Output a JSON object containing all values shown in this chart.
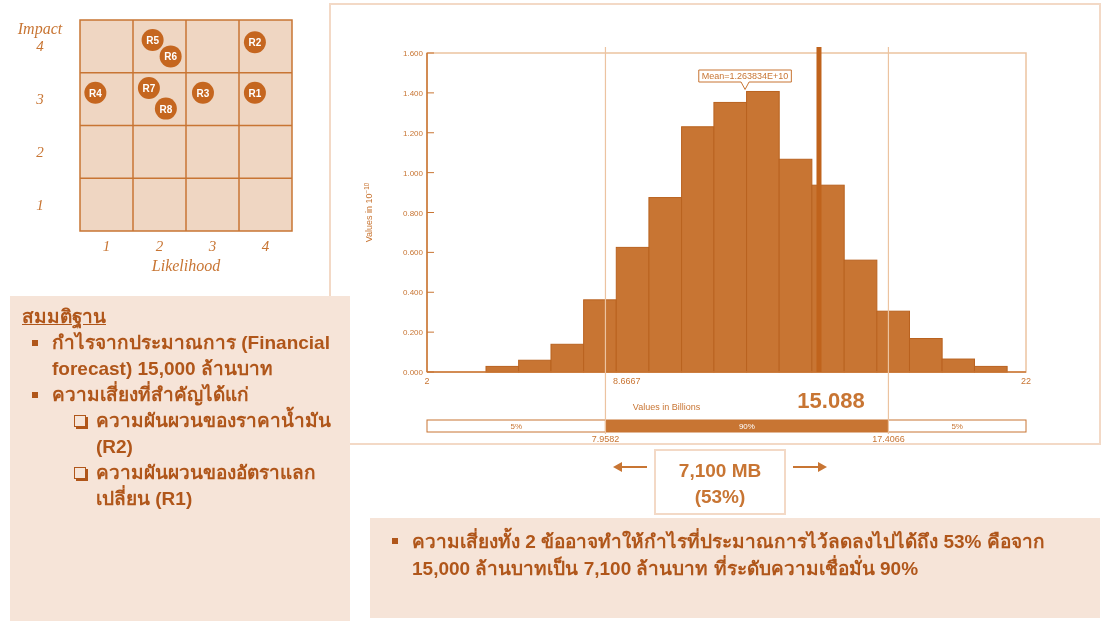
{
  "chart_data": [
    {
      "type": "scatter",
      "xlabel": "Likelihood",
      "ylabel": "Impact",
      "xlim": [
        0.5,
        4.5
      ],
      "ylim": [
        0.5,
        4.5
      ],
      "xticks": [
        1,
        2,
        3,
        4
      ],
      "yticks": [
        1,
        2,
        3,
        4
      ],
      "marker": "circle",
      "ref_lines": [
        {
          "axis": "x",
          "value": 1.5,
          "color": "#c87533"
        },
        {
          "axis": "x",
          "value": 2.5,
          "color": "#c87533"
        },
        {
          "axis": "x",
          "value": 3.5,
          "color": "#c87533"
        },
        {
          "axis": "y",
          "value": 1.5,
          "color": "#c87533"
        },
        {
          "axis": "y",
          "value": 2.5,
          "color": "#c87533"
        },
        {
          "axis": "y",
          "value": 3.5,
          "color": "#c87533"
        }
      ],
      "series": [
        {
          "color": "#c5661f",
          "x": [
            3.8,
            3.8,
            2.82,
            0.79,
            1.87,
            2.21,
            1.8,
            2.12
          ],
          "values": [
            3.12,
            4.08,
            3.12,
            3.12,
            4.12,
            3.81,
            3.21,
            2.82
          ],
          "value_labels": [
            "R1",
            "R2",
            "R3",
            "R4",
            "R5",
            "R6",
            "R7",
            "R8"
          ]
        }
      ]
    },
    {
      "type": "histogram",
      "xlabel": "Values in Billions",
      "ylabel": "Values in 10$^{−10}$",
      "xlim": [
        2,
        22
      ],
      "ylim": [
        0,
        1.6
      ],
      "xticks": [
        2,
        8.6667,
        22
      ],
      "yticks": [
        {
          "value": 0,
          "label": "0.000"
        },
        {
          "value": 0.2,
          "label": "0.200"
        },
        {
          "value": 0.4,
          "label": "0.400"
        },
        {
          "value": 0.6,
          "label": "0.600"
        },
        {
          "value": 0.8,
          "label": "0.800"
        },
        {
          "value": 1.0,
          "label": "1.000"
        },
        {
          "value": 1.2,
          "label": "1.200"
        },
        {
          "value": 1.4,
          "label": "1.400"
        },
        {
          "value": 1.6,
          "label": "1.600"
        }
      ],
      "bins": [
        3.97,
        5.06,
        6.14,
        7.23,
        8.32,
        9.41,
        10.5,
        11.58,
        12.67,
        13.76,
        14.85,
        15.93,
        17.02,
        18.11,
        19.2,
        20.28,
        21.37
      ],
      "values": [
        0.028,
        0.059,
        0.139,
        0.362,
        0.625,
        0.875,
        1.23,
        1.352,
        1.407,
        1.067,
        0.937,
        0.561,
        0.305,
        0.168,
        0.065,
        0.028
      ],
      "color": "#c87533",
      "ref_lines": [
        {
          "axis": "x",
          "value": 7.9582,
          "label": "7.9582",
          "color": "#ecc3a0"
        },
        {
          "axis": "x",
          "value": 17.4066,
          "label": "17.4066",
          "color": "#ecc3a0"
        },
        {
          "axis": "x",
          "value": 15.088,
          "label": "15.088",
          "color": "#c0631c"
        }
      ],
      "annotations": [
        {
          "text": "Mean=1.263834E+10",
          "x": 12.62,
          "y": 1.407
        },
        "5%",
        "90%",
        "5%",
        "7,100 MB (53%)"
      ]
    },
    {
      "type": "other",
      "title": "สมมติฐาน",
      "annotations": [
        "กำไรจากประมาณการ (Financial forecast) 15,000 ล้านบาท",
        "ความเสี่ยงที่สำคัญได้แก่",
        "ความผันผวนของราคาน้ำมัน (R2)",
        "ความผันผวนของอัตราแลกเปลี่ยน (R1)"
      ]
    },
    {
      "type": "other",
      "annotations": [
        "ความเสี่ยงทั้ง 2 ข้ออาจทำให้กำไรที่ประมาณการไว้ลดลงไปได้ถึง 53% คือจาก 15,000 ล้านบาทเป็น 7,100 ล้านบาท ที่ระดับความเชื่อมั่น 90%"
      ]
    }
  ]
}
